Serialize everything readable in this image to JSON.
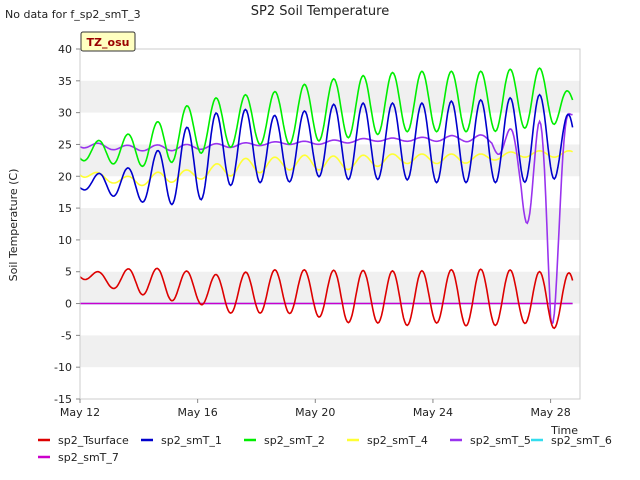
{
  "chart_data": {
    "type": "line",
    "title": "SP2 Soil Temperature",
    "note": "No data for f_sp2_smT_3",
    "badge": "TZ_osu",
    "xlabel": "Time",
    "ylabel": "Soil Temperature (C)",
    "xlim": [
      "2024-05-12",
      "2024-05-29"
    ],
    "ylim": [
      -15,
      40
    ],
    "x_ticks": [
      {
        "label": "May 12",
        "date": "2024-05-12"
      },
      {
        "label": "May 16",
        "date": "2024-05-16"
      },
      {
        "label": "May 20",
        "date": "2024-05-20"
      },
      {
        "label": "May 24",
        "date": "2024-05-24"
      },
      {
        "label": "May 28",
        "date": "2024-05-28"
      }
    ],
    "y_ticks": [
      -15,
      -10,
      -5,
      0,
      5,
      10,
      15,
      20,
      25,
      30,
      35,
      40
    ],
    "grid": "alternating horizontal bands",
    "legend_position": "bottom",
    "series": [
      {
        "name": "sp2_Tsurface",
        "color": "#dd0000",
        "x": [
          "2024-05-12",
          "2024-05-13",
          "2024-05-14",
          "2024-05-15",
          "2024-05-16",
          "2024-05-17",
          "2024-05-18",
          "2024-05-19",
          "2024-05-20",
          "2024-05-21",
          "2024-05-22",
          "2024-05-23",
          "2024-05-24",
          "2024-05-25",
          "2024-05-26",
          "2024-05-27",
          "2024-05-28",
          "2024-05-28T18:00"
        ],
        "max": [
          5.5,
          4.7,
          5.9,
          5.3,
          5.0,
          4.3,
          5.3,
          5.3,
          5.3,
          5.2,
          5.2,
          5.1,
          5.2,
          5.4,
          5.4,
          5.2,
          4.9,
          4.8
        ],
        "min": [
          4.0,
          2.5,
          1.5,
          0.5,
          0.0,
          -1.5,
          -1.5,
          -1.5,
          -2.0,
          -3.0,
          -3.0,
          -3.5,
          -3.0,
          -3.5,
          -3.5,
          -3.0,
          -4.0,
          -3.2
        ]
      },
      {
        "name": "sp2_smT_1",
        "color": "#0000cc",
        "x": [
          "2024-05-12",
          "2024-05-13",
          "2024-05-14",
          "2024-05-15",
          "2024-05-16",
          "2024-05-17",
          "2024-05-18",
          "2024-05-19",
          "2024-05-20",
          "2024-05-21",
          "2024-05-22",
          "2024-05-23",
          "2024-05-24",
          "2024-05-25",
          "2024-05-26",
          "2024-05-27",
          "2024-05-28",
          "2024-05-28T18:00"
        ],
        "max": [
          19.5,
          21.0,
          21.5,
          25.5,
          29.0,
          30.5,
          30.5,
          29.0,
          31.0,
          31.5,
          31.5,
          31.5,
          31.5,
          32.0,
          32.0,
          32.5,
          33.0,
          29.0
        ],
        "min": [
          18.0,
          17.0,
          16.0,
          15.5,
          16.0,
          18.5,
          19.0,
          19.0,
          20.0,
          19.5,
          19.5,
          19.5,
          19.0,
          19.0,
          19.0,
          19.0,
          19.5,
          20.0
        ]
      },
      {
        "name": "sp2_smT_2",
        "color": "#00ee00",
        "x": [
          "2024-05-12",
          "2024-05-13",
          "2024-05-14",
          "2024-05-15",
          "2024-05-16",
          "2024-05-17",
          "2024-05-18",
          "2024-05-19",
          "2024-05-20",
          "2024-05-21",
          "2024-05-22",
          "2024-05-23",
          "2024-05-24",
          "2024-05-25",
          "2024-05-26",
          "2024-05-27",
          "2024-05-28",
          "2024-05-28T18:00"
        ],
        "max": [
          25.0,
          26.0,
          27.0,
          29.5,
          32.0,
          32.5,
          33.0,
          33.5,
          35.0,
          35.5,
          36.0,
          36.5,
          36.5,
          36.5,
          36.5,
          37.0,
          37.0,
          32.5
        ],
        "min": [
          22.5,
          22.0,
          21.5,
          22.0,
          23.5,
          24.5,
          25.0,
          25.0,
          25.5,
          26.0,
          26.5,
          27.0,
          27.0,
          27.0,
          27.0,
          27.5,
          28.0,
          29.0
        ]
      },
      {
        "name": "sp2_smT_4",
        "color": "#ffff33",
        "x": [
          "2024-05-12",
          "2024-05-13",
          "2024-05-14",
          "2024-05-15",
          "2024-05-16",
          "2024-05-17",
          "2024-05-18",
          "2024-05-19",
          "2024-05-20",
          "2024-05-21",
          "2024-05-22",
          "2024-05-23",
          "2024-05-24",
          "2024-05-25",
          "2024-05-26",
          "2024-05-27",
          "2024-05-28",
          "2024-05-28T18:00"
        ],
        "max": [
          21.5,
          20.0,
          20.0,
          21.0,
          21.0,
          22.5,
          23.0,
          23.0,
          23.5,
          23.0,
          23.5,
          23.5,
          23.5,
          23.5,
          23.5,
          24.0,
          24.0,
          24.0
        ],
        "min": [
          20.0,
          19.0,
          18.5,
          19.0,
          19.5,
          20.0,
          20.5,
          21.0,
          21.0,
          21.0,
          21.5,
          22.0,
          22.0,
          22.0,
          22.5,
          23.0,
          23.0,
          23.0
        ]
      },
      {
        "name": "sp2_smT_5",
        "color": "#9933ee",
        "x": [
          "2024-05-12",
          "2024-05-13",
          "2024-05-14",
          "2024-05-15",
          "2024-05-16",
          "2024-05-17",
          "2024-05-18",
          "2024-05-19",
          "2024-05-20",
          "2024-05-21",
          "2024-05-22",
          "2024-05-23",
          "2024-05-24",
          "2024-05-25",
          "2024-05-26",
          "2024-05-27",
          "2024-05-28",
          "2024-05-28T18:00"
        ],
        "max": [
          25.5,
          25.0,
          24.8,
          25.0,
          25.0,
          25.2,
          25.3,
          25.5,
          25.5,
          25.8,
          26.0,
          26.0,
          26.2,
          26.5,
          26.5,
          28.0,
          29.0,
          30.0
        ],
        "min": [
          24.5,
          24.2,
          24.0,
          24.0,
          24.2,
          24.5,
          24.8,
          25.0,
          25.0,
          25.2,
          25.5,
          25.5,
          25.5,
          25.5,
          25.0,
          16.5,
          -7.5,
          28.0
        ]
      },
      {
        "name": "sp2_smT_6",
        "color": "#33ddee",
        "x": [
          "2024-05-12",
          "2024-05-28T18:00"
        ],
        "values": [
          0,
          0
        ]
      },
      {
        "name": "sp2_smT_7",
        "color": "#cc00cc",
        "x": [
          "2024-05-12",
          "2024-05-28T18:00"
        ],
        "values": [
          0,
          0
        ]
      }
    ]
  }
}
